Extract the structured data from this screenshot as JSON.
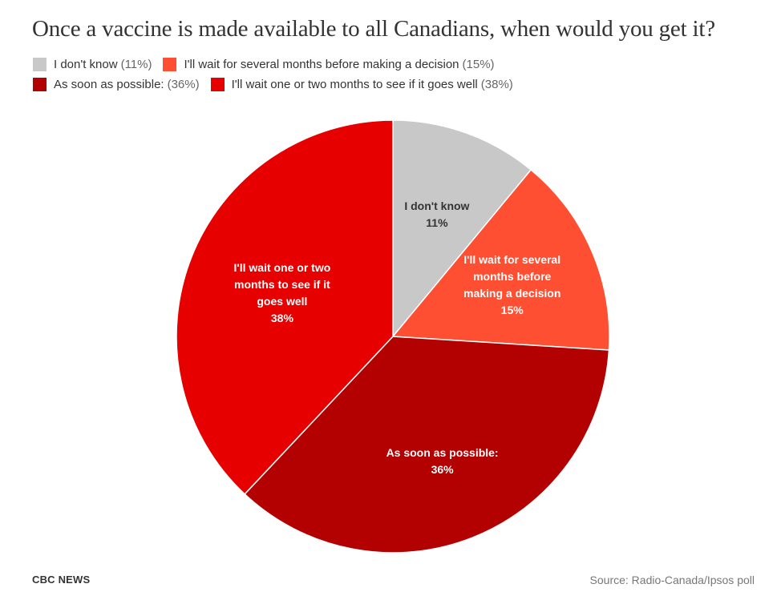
{
  "chart_data": {
    "type": "pie",
    "title": "Once a vaccine is made available to all Canadians, when would you get it?",
    "unit": "%",
    "slices": [
      {
        "label": "I don't know",
        "value": 11,
        "pct_text": "(11%)",
        "color": "#c8c8c8",
        "text_color": "#333333",
        "inner_lines": [
          "I don't know"
        ],
        "inner_pct": "11%"
      },
      {
        "label": "I'll wait for several months before making a decision",
        "value": 15,
        "pct_text": "(15%)",
        "color": "#ff4f33",
        "text_color": "#ffffff",
        "inner_lines": [
          "I'll wait for several",
          "months before",
          "making a decision"
        ],
        "inner_pct": "15%"
      },
      {
        "label": "As soon as possible:",
        "value": 36,
        "pct_text": "(36%)",
        "color": "#b30000",
        "text_color": "#ffffff",
        "inner_lines": [
          "As soon as possible:"
        ],
        "inner_pct": "36%"
      },
      {
        "label": "I'll wait one or two months to see if it goes well",
        "value": 38,
        "pct_text": "(38%)",
        "color": "#e60000",
        "text_color": "#ffffff",
        "inner_lines": [
          "I'll wait one or two",
          "months to see if it",
          "goes well"
        ],
        "inner_pct": "38%"
      }
    ],
    "legend": {
      "placement": "top-left",
      "rows": [
        [
          0,
          1
        ],
        [
          2,
          3
        ]
      ]
    }
  },
  "footer": {
    "brand": "CBC NEWS",
    "source": "Source: Radio-Canada/Ipsos poll"
  }
}
